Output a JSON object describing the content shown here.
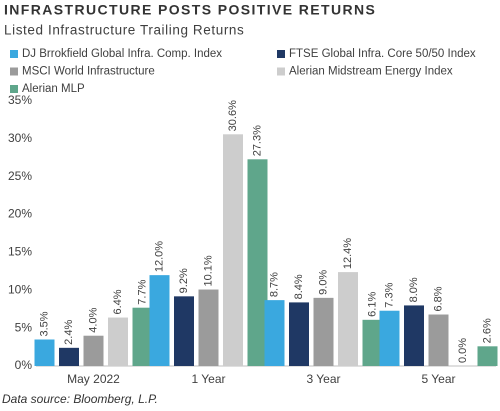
{
  "chart_data": {
    "type": "bar",
    "title": "INFRASTRUCTURE POSTS POSITIVE RETURNS",
    "subtitle": "Listed Infrastructure Trailing Returns",
    "categories": [
      "May 2022",
      "1 Year",
      "3 Year",
      "5 Year"
    ],
    "series": [
      {
        "name": "DJ Brrokfield Global Infra. Comp. Index",
        "color": "#3aa8df",
        "values": [
          3.5,
          12.0,
          8.7,
          7.3
        ],
        "value_labels": [
          "3.5%",
          "12.0%",
          "8.7%",
          "7.3%"
        ]
      },
      {
        "name": "FTSE Global Infra. Core 50/50 Index",
        "color": "#1f3864",
        "values": [
          2.4,
          9.2,
          8.4,
          8.0
        ],
        "value_labels": [
          "2.4%",
          "9.2%",
          "8.4%",
          "8.0%"
        ]
      },
      {
        "name": "MSCI World Infrastructure",
        "color": "#9b9b9b",
        "values": [
          4.0,
          10.1,
          9.0,
          6.8
        ],
        "value_labels": [
          "4.0%",
          "10.1%",
          "9.0%",
          "6.8%"
        ]
      },
      {
        "name": "Alerian Midstream Energy Index",
        "color": "#cdcdcd",
        "values": [
          6.4,
          30.6,
          12.4,
          0.0
        ],
        "value_labels": [
          "6.4%",
          "30.6%",
          "12.4%",
          "0.0%"
        ]
      },
      {
        "name": "Alerian MLP",
        "color": "#5fa68b",
        "values": [
          7.7,
          27.3,
          6.1,
          2.6
        ],
        "value_labels": [
          "7.7%",
          "27.3%",
          "6.1%",
          "2.6%"
        ]
      }
    ],
    "ylim": [
      0,
      35
    ],
    "yticks": [
      {
        "value": 0,
        "label": "0%"
      },
      {
        "value": 5,
        "label": "5%"
      },
      {
        "value": 10,
        "label": "10%"
      },
      {
        "value": 15,
        "label": "15%"
      },
      {
        "value": 20,
        "label": "20%"
      },
      {
        "value": 25,
        "label": "25%"
      },
      {
        "value": 30,
        "label": "30%"
      },
      {
        "value": 35,
        "label": "35%"
      }
    ],
    "source": "Data source: Bloomberg, L.P."
  }
}
